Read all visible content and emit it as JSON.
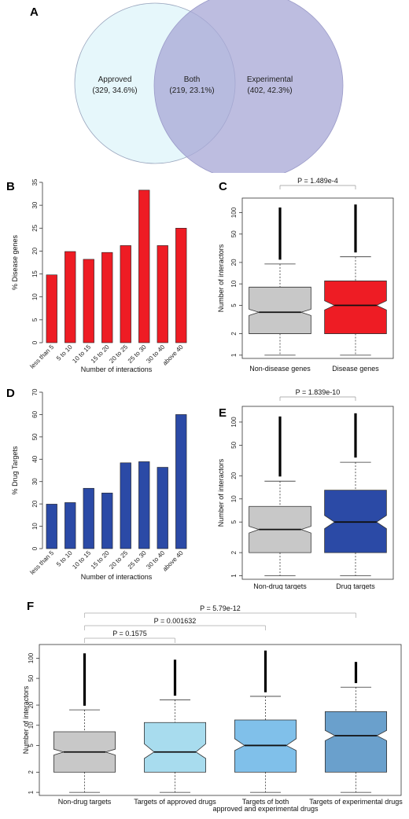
{
  "panel_labels": {
    "A": "A",
    "B": "B",
    "C": "C",
    "D": "D",
    "E": "E",
    "F": "F"
  },
  "chart_data": [
    {
      "panel": "A",
      "type": "venn",
      "sets": [
        {
          "label": "Approved",
          "value_text": "(329, 34.6%)",
          "color": "#e3f6fb"
        },
        {
          "label": "Experimental",
          "value_text": "(402, 42.3%)",
          "color": "#b4b4dc"
        }
      ],
      "intersection": {
        "label": "Both",
        "value_text": "(219, 23.1%)",
        "color": "#9cb4d8"
      }
    },
    {
      "panel": "B",
      "type": "bar",
      "categories": [
        "less than 5",
        "5 to 10",
        "10 to 15",
        "15 to 20",
        "20 to 25",
        "25 to 30",
        "30 to 40",
        "above 40"
      ],
      "values": [
        14.8,
        19.9,
        18.2,
        19.7,
        21.2,
        33.3,
        21.2,
        25.0
      ],
      "xlabel": "Number of interactions",
      "ylabel": "% Disease genes",
      "ylim": [
        0,
        35
      ],
      "yticks": [
        0,
        5,
        10,
        15,
        20,
        25,
        30,
        35
      ],
      "color": "#ee1c24"
    },
    {
      "panel": "C",
      "type": "boxplot",
      "scale": "log",
      "ylabel": "Number of interactors",
      "yticks": [
        1,
        2,
        5,
        10,
        20,
        50,
        100
      ],
      "ylim": [
        0.9,
        160
      ],
      "annotation": "P = 1.489e-4",
      "groups": [
        {
          "name": "Non-disease genes",
          "whisker_low": 1,
          "q1": 2,
          "median": 4,
          "q3": 9,
          "whisker_high": 19,
          "notch_low": 3.6,
          "notch_high": 4.4,
          "outlier_top": 118,
          "color": "#c8c8c8"
        },
        {
          "name": "Disease genes",
          "whisker_low": 1,
          "q1": 2,
          "median": 5,
          "q3": 11,
          "whisker_high": 24,
          "notch_low": 4.3,
          "notch_high": 5.8,
          "outlier_top": 130,
          "color": "#ee1c24"
        }
      ]
    },
    {
      "panel": "D",
      "type": "bar",
      "categories": [
        "less than 5",
        "5 to 10",
        "10 to 15",
        "15 to 20",
        "20 to 25",
        "25 to 30",
        "30 to 40",
        "above 40"
      ],
      "values": [
        19.9,
        20.6,
        27.0,
        24.9,
        38.4,
        38.9,
        36.4,
        60.0
      ],
      "xlabel": "Number of interactions",
      "ylabel": "% Drug Targets",
      "ylim": [
        0,
        70
      ],
      "yticks": [
        0,
        10,
        20,
        30,
        40,
        50,
        60,
        70
      ],
      "color": "#2b4aa6"
    },
    {
      "panel": "E",
      "type": "boxplot",
      "scale": "log",
      "ylabel": "Number of interactors",
      "yticks": [
        1,
        2,
        5,
        10,
        20,
        50,
        100
      ],
      "ylim": [
        0.9,
        160
      ],
      "annotation": "P = 1.839e-10",
      "groups": [
        {
          "name": "Non-drug targets",
          "whisker_low": 1,
          "q1": 2,
          "median": 4,
          "q3": 8,
          "whisker_high": 17,
          "notch_low": 3.6,
          "notch_high": 4.4,
          "outlier_top": 118,
          "color": "#c8c8c8"
        },
        {
          "name": "Drug targets",
          "whisker_low": 1,
          "q1": 2,
          "median": 5,
          "q3": 13,
          "whisker_high": 30,
          "notch_low": 4.1,
          "notch_high": 6.1,
          "outlier_top": 130,
          "color": "#2b4aa6"
        }
      ]
    },
    {
      "panel": "F",
      "type": "boxplot",
      "scale": "log",
      "ylabel": "Number of interactors",
      "yticks": [
        1,
        2,
        5,
        10,
        20,
        50,
        100
      ],
      "ylim": [
        0.9,
        160
      ],
      "annotations": [
        {
          "text": "P = 0.1575",
          "from": 0,
          "to": 1
        },
        {
          "text": "P = 0.001632",
          "from": 0,
          "to": 2
        },
        {
          "text": "P = 5.79e-12",
          "from": 0,
          "to": 3
        }
      ],
      "groups": [
        {
          "name": "Non-drug targets",
          "name2": "",
          "whisker_low": 1,
          "q1": 2,
          "median": 4,
          "q3": 8,
          "whisker_high": 17,
          "notch_low": 3.6,
          "notch_high": 4.4,
          "outlier_top": 118,
          "color": "#c8c8c8"
        },
        {
          "name": "Targets of approved drugs",
          "name2": "",
          "whisker_low": 1,
          "q1": 2,
          "median": 4,
          "q3": 11,
          "whisker_high": 24,
          "notch_low": 3.2,
          "notch_high": 5.3,
          "outlier_top": 95,
          "color": "#a8dcee"
        },
        {
          "name": "Targets of both",
          "name2": "approved and experimental drugs",
          "whisker_low": 1,
          "q1": 2,
          "median": 5,
          "q3": 12,
          "whisker_high": 27,
          "notch_low": 4.2,
          "notch_high": 6.3,
          "outlier_top": 130,
          "color": "#80c0ea"
        },
        {
          "name": "Targets of experimental drugs",
          "name2": "",
          "whisker_low": 1,
          "q1": 2,
          "median": 7,
          "q3": 16,
          "whisker_high": 37,
          "notch_low": 5.9,
          "notch_high": 8.4,
          "outlier_top": 88,
          "color": "#6aa0cc"
        }
      ]
    }
  ]
}
